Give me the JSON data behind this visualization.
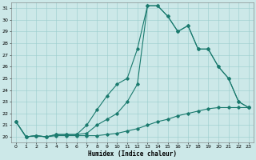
{
  "xlabel": "Humidex (Indice chaleur)",
  "bg_color": "#cce8e8",
  "grid_color": "#99cccc",
  "line_color": "#1a7a6e",
  "xlim": [
    -0.5,
    23.5
  ],
  "ylim": [
    19.5,
    31.5
  ],
  "xticks": [
    0,
    1,
    2,
    3,
    4,
    5,
    6,
    7,
    8,
    9,
    10,
    11,
    12,
    13,
    14,
    15,
    16,
    17,
    18,
    19,
    20,
    21,
    22,
    23
  ],
  "yticks": [
    20,
    21,
    22,
    23,
    24,
    25,
    26,
    27,
    28,
    29,
    30,
    31
  ],
  "line1_x": [
    0,
    1,
    2,
    3,
    4,
    5,
    6,
    7,
    8,
    9,
    10,
    11,
    12,
    13,
    14,
    15,
    16,
    17,
    18,
    19,
    20,
    21,
    22,
    23
  ],
  "line1_y": [
    21.3,
    20.0,
    20.1,
    20.0,
    20.1,
    20.1,
    20.1,
    20.1,
    20.1,
    20.2,
    20.3,
    20.5,
    20.7,
    21.0,
    21.3,
    21.5,
    21.8,
    22.0,
    22.2,
    22.4,
    22.5,
    22.5,
    22.5,
    22.5
  ],
  "line2_x": [
    0,
    1,
    2,
    3,
    4,
    5,
    6,
    7,
    8,
    9,
    10,
    11,
    12,
    13,
    14,
    15,
    16,
    17,
    18,
    19,
    20,
    21,
    22,
    23
  ],
  "line2_y": [
    21.3,
    20.0,
    20.1,
    20.0,
    20.2,
    20.2,
    20.2,
    20.3,
    21.0,
    21.5,
    22.0,
    23.0,
    24.5,
    31.2,
    31.2,
    30.3,
    29.0,
    29.5,
    27.5,
    27.5,
    26.0,
    25.0,
    23.0,
    22.5
  ],
  "line3_x": [
    0,
    1,
    2,
    3,
    4,
    5,
    6,
    7,
    8,
    9,
    10,
    11,
    12,
    13,
    14,
    15,
    16,
    17,
    18,
    19,
    20,
    21,
    22,
    23
  ],
  "line3_y": [
    21.3,
    20.0,
    20.1,
    20.0,
    20.2,
    20.2,
    20.2,
    21.0,
    22.3,
    23.5,
    24.5,
    25.0,
    27.5,
    31.2,
    31.2,
    30.3,
    29.0,
    29.5,
    27.5,
    27.5,
    26.0,
    25.0,
    23.0,
    22.5
  ]
}
